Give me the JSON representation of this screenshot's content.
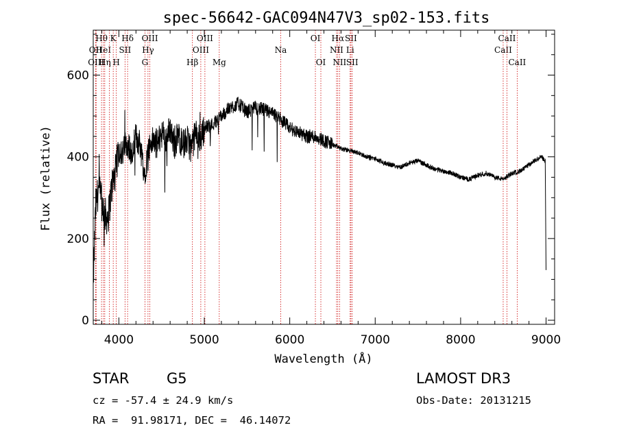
{
  "chart_data": {
    "type": "line",
    "title": "spec-56642-GAC094N47V3_sp02-153.fits",
    "xlabel": "Wavelength (Å)",
    "ylabel": "Flux (relative)",
    "xlim": [
      3700,
      9100
    ],
    "ylim": [
      -10,
      710
    ],
    "x_ticks": [
      4000,
      5000,
      6000,
      7000,
      8000,
      9000
    ],
    "y_ticks": [
      0,
      200,
      400,
      600
    ],
    "x_tick_labels": [
      "4000",
      "5000",
      "6000",
      "7000",
      "8000",
      "9000"
    ],
    "y_tick_labels": [
      "0",
      "200",
      "400",
      "600"
    ],
    "series": [
      {
        "name": "flux",
        "x": [
          3700,
          3730,
          3760,
          3800,
          3850,
          3880,
          3920,
          3960,
          4000,
          4050,
          4100,
          4150,
          4200,
          4250,
          4300,
          4350,
          4400,
          4450,
          4500,
          4550,
          4600,
          4650,
          4700,
          4750,
          4800,
          4850,
          4900,
          4950,
          5000,
          5100,
          5200,
          5300,
          5400,
          5500,
          5600,
          5700,
          5800,
          5900,
          6000,
          6100,
          6200,
          6300,
          6400,
          6500,
          6600,
          6700,
          6800,
          6900,
          7000,
          7100,
          7200,
          7300,
          7400,
          7500,
          7600,
          7700,
          7800,
          7900,
          8000,
          8100,
          8200,
          8300,
          8400,
          8500,
          8600,
          8700,
          8800,
          8900,
          8950,
          8990,
          9000
        ],
        "y": [
          90,
          280,
          320,
          290,
          250,
          260,
          330,
          360,
          420,
          410,
          440,
          400,
          450,
          430,
          360,
          420,
          440,
          430,
          460,
          440,
          470,
          430,
          450,
          430,
          440,
          420,
          460,
          440,
          470,
          480,
          500,
          520,
          530,
          510,
          520,
          515,
          505,
          490,
          470,
          460,
          450,
          450,
          440,
          430,
          420,
          415,
          410,
          400,
          395,
          385,
          380,
          375,
          385,
          390,
          380,
          370,
          365,
          360,
          350,
          345,
          355,
          360,
          350,
          345,
          360,
          365,
          380,
          395,
          400,
          390,
          120
        ]
      }
    ],
    "emission_lines": [
      {
        "wave": 3727,
        "label": "OII",
        "row": 1
      },
      {
        "wave": 3734,
        "label": "OIII",
        "row": 2
      },
      {
        "wave": 3797,
        "label": "Hθ",
        "row": 0
      },
      {
        "wave": 3820,
        "label": "HeI",
        "row": 1
      },
      {
        "wave": 3835,
        "label": "Hη",
        "row": 2
      },
      {
        "wave": 3889,
        "label": "",
        "row": -1
      },
      {
        "wave": 3934,
        "label": "K",
        "row": 0
      },
      {
        "wave": 3970,
        "label": "H",
        "row": 2
      },
      {
        "wave": 4072,
        "label": "SII",
        "row": 1
      },
      {
        "wave": 4102,
        "label": "Hδ",
        "row": 0
      },
      {
        "wave": 4305,
        "label": "G",
        "row": 2
      },
      {
        "wave": 4341,
        "label": "Hγ",
        "row": 1
      },
      {
        "wave": 4363,
        "label": "OIII",
        "row": 0
      },
      {
        "wave": 4861,
        "label": "Hβ",
        "row": 2
      },
      {
        "wave": 4959,
        "label": "OIII",
        "row": 1
      },
      {
        "wave": 5007,
        "label": "OIII",
        "row": 0
      },
      {
        "wave": 5175,
        "label": "Mg",
        "row": 2
      },
      {
        "wave": 5894,
        "label": "Na",
        "row": 1
      },
      {
        "wave": 6300,
        "label": "OI",
        "row": 0
      },
      {
        "wave": 6364,
        "label": "OI",
        "row": 2
      },
      {
        "wave": 6548,
        "label": "NII",
        "row": 1
      },
      {
        "wave": 6563,
        "label": "Hα",
        "row": 0
      },
      {
        "wave": 6583,
        "label": "NII",
        "row": 2
      },
      {
        "wave": 6707,
        "label": "Li",
        "row": 1
      },
      {
        "wave": 6716,
        "label": "SII",
        "row": 0
      },
      {
        "wave": 6731,
        "label": "SII",
        "row": 2
      },
      {
        "wave": 8498,
        "label": "CaII",
        "row": 1
      },
      {
        "wave": 8542,
        "label": "CaII",
        "row": 0
      },
      {
        "wave": 8662,
        "label": "CaII",
        "row": 2
      }
    ]
  },
  "info": {
    "object_class": "STAR",
    "subclass": "G5",
    "survey": "LAMOST DR3",
    "redshift": "cz = -57.4 ± 24.9 km/s",
    "obs_date": "Obs-Date: 20131215",
    "coords": "RA =  91.98171, DEC =  46.14072"
  },
  "colors": {
    "spectrum": "#000000",
    "line_markers": "#cc0000",
    "axes": "#000000"
  }
}
